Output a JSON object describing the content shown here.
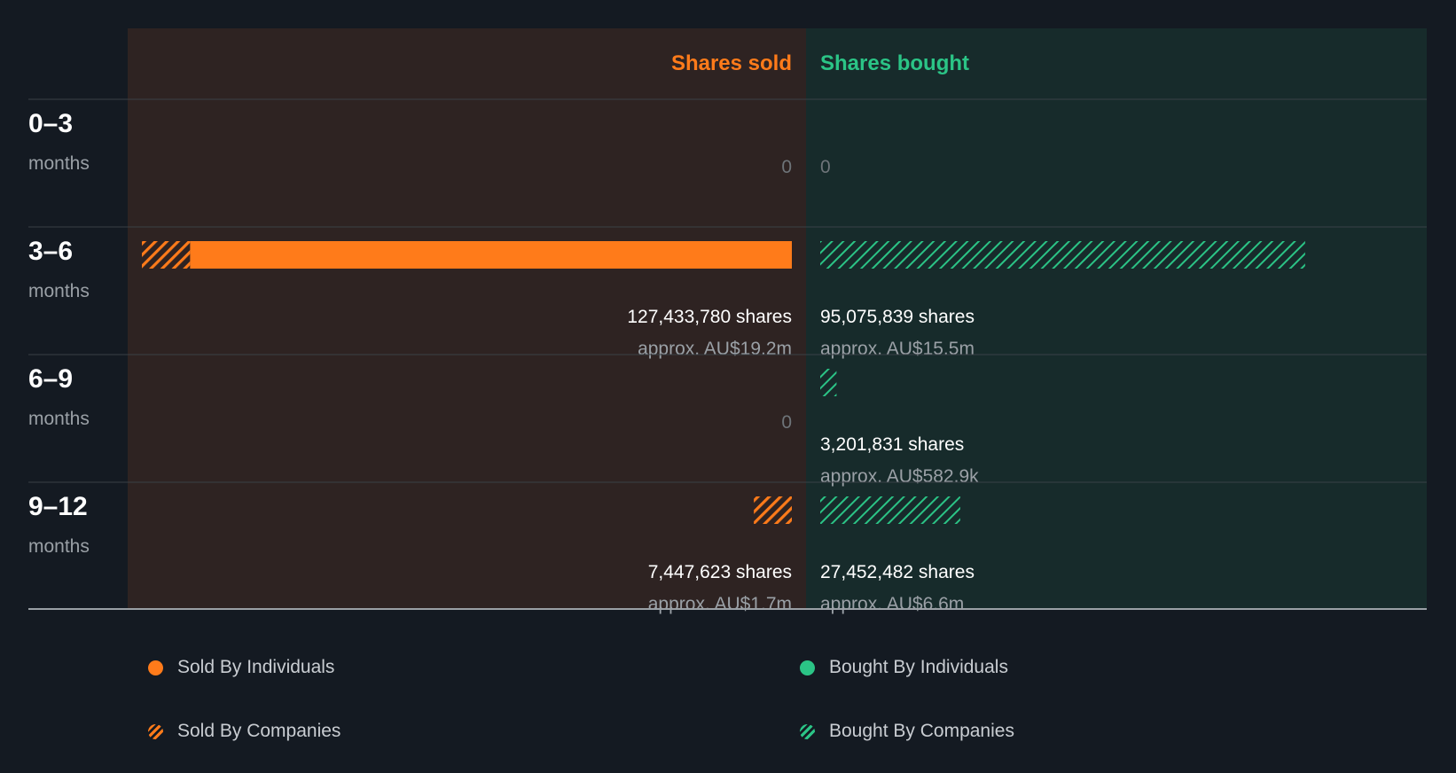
{
  "colors": {
    "background": "#141a22",
    "sold_panel": "#2e2322",
    "bought_panel": "#172b2b",
    "sold": "#ff7b1a",
    "bought": "#2bc486",
    "divider": "#3a4047",
    "axis": "#9aa0a6"
  },
  "chart_data": {
    "type": "bar",
    "headers": {
      "sold": "Shares sold",
      "bought": "Shares bought"
    },
    "xmax": 127433780,
    "periods": [
      {
        "range": "0–3",
        "unit": "months",
        "sold": {
          "individuals": 0,
          "companies": 0,
          "shares_label": "0",
          "value_label": ""
        },
        "bought": {
          "individuals": 0,
          "companies": 0,
          "shares_label": "0",
          "value_label": ""
        }
      },
      {
        "range": "3–6",
        "unit": "months",
        "sold": {
          "individuals": 118000000,
          "companies": 9433780,
          "shares_label": "127,433,780 shares",
          "value_label": "approx. AU$19.2m"
        },
        "bought": {
          "individuals": 0,
          "companies": 95075839,
          "shares_label": "95,075,839 shares",
          "value_label": "approx. AU$15.5m"
        }
      },
      {
        "range": "6–9",
        "unit": "months",
        "sold": {
          "individuals": 0,
          "companies": 0,
          "shares_label": "0",
          "value_label": ""
        },
        "bought": {
          "individuals": 0,
          "companies": 3201831,
          "shares_label": "3,201,831 shares",
          "value_label": "approx. AU$582.9k"
        }
      },
      {
        "range": "9–12",
        "unit": "months",
        "sold": {
          "individuals": 0,
          "companies": 7447623,
          "shares_label": "7,447,623 shares",
          "value_label": "approx. AU$1.7m"
        },
        "bought": {
          "individuals": 0,
          "companies": 27452482,
          "shares_label": "27,452,482 shares",
          "value_label": "approx. AU$6.6m"
        }
      }
    ],
    "legend": [
      {
        "key": "sold-individuals",
        "label": "Sold By Individuals",
        "style": "solid",
        "side": "sold"
      },
      {
        "key": "bought-individuals",
        "label": "Bought By Individuals",
        "style": "solid",
        "side": "bought"
      },
      {
        "key": "sold-companies",
        "label": "Sold By Companies",
        "style": "hatched",
        "side": "sold"
      },
      {
        "key": "bought-companies",
        "label": "Bought By Companies",
        "style": "hatched",
        "side": "bought"
      }
    ]
  }
}
